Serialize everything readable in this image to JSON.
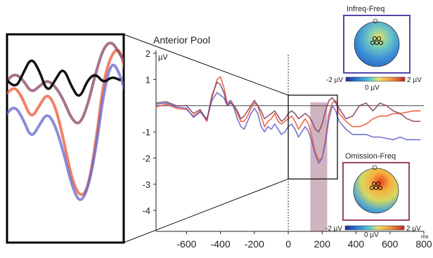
{
  "chart_data": {
    "type": "line",
    "title": "Anterior Pool",
    "ylabel": "µV",
    "xunit": "ms",
    "xlim": [
      -780,
      800
    ],
    "ylim": [
      -4.8,
      2
    ],
    "xticks": [
      -600,
      -400,
      -200,
      0,
      200,
      400,
      600,
      800
    ],
    "yticks": [
      2,
      1,
      -1,
      -2,
      -3,
      -4
    ],
    "highlight_window": [
      130,
      230
    ],
    "zoom_window": {
      "x": [
        0,
        290
      ],
      "y": [
        -2.8,
        0.4
      ]
    },
    "series": [
      {
        "color": "#ee5533",
        "x": [
          -780,
          -720,
          -660,
          -600,
          -560,
          -520,
          -480,
          -450,
          -420,
          -400,
          -380,
          -360,
          -340,
          -320,
          -300,
          -280,
          -260,
          -240,
          -220,
          -200,
          -180,
          -160,
          -140,
          -120,
          -100,
          -80,
          -60,
          -40,
          -20,
          0,
          20,
          40,
          60,
          80,
          100,
          120,
          140,
          160,
          180,
          200,
          220,
          240,
          260,
          280,
          300,
          340,
          380,
          420,
          460,
          500,
          540,
          580,
          620,
          660,
          700,
          740,
          780
        ],
        "y": [
          -0.05,
          0.05,
          -0.1,
          -0.15,
          -0.4,
          -0.2,
          -0.6,
          0.3,
          1.0,
          1.1,
          0.7,
          0.1,
          0.2,
          0.0,
          -0.3,
          -0.6,
          -0.6,
          -0.4,
          -0.1,
          0.1,
          0.0,
          -0.4,
          -0.8,
          -0.6,
          -0.5,
          -0.3,
          -0.6,
          -0.7,
          -0.6,
          -0.5,
          -0.4,
          -0.6,
          -0.9,
          -0.7,
          -0.5,
          -0.7,
          -1.2,
          -1.8,
          -2.1,
          -2.0,
          -1.3,
          -0.3,
          0.1,
          0.2,
          -0.3,
          -0.6,
          -0.8,
          -0.8,
          -0.7,
          -0.5,
          -0.4,
          -0.4,
          -0.3,
          -0.3,
          -0.25,
          -0.2,
          -0.2
        ]
      },
      {
        "color": "#6666cc",
        "x": [
          -780,
          -720,
          -660,
          -600,
          -560,
          -520,
          -480,
          -450,
          -420,
          -400,
          -380,
          -360,
          -340,
          -320,
          -300,
          -280,
          -260,
          -240,
          -220,
          -200,
          -180,
          -160,
          -140,
          -120,
          -100,
          -80,
          -60,
          -40,
          -20,
          0,
          20,
          40,
          60,
          80,
          100,
          120,
          140,
          160,
          180,
          200,
          220,
          240,
          260,
          280,
          300,
          340,
          380,
          420,
          460,
          500,
          540,
          580,
          620,
          660,
          700,
          740,
          780
        ],
        "y": [
          0.05,
          0.1,
          -0.05,
          -0.1,
          -0.45,
          -0.25,
          -0.5,
          0.2,
          0.5,
          0.4,
          0.3,
          0.0,
          0.2,
          -0.1,
          -0.5,
          -0.8,
          -0.9,
          -0.6,
          -0.3,
          -0.1,
          -0.3,
          -0.8,
          -1.0,
          -0.8,
          -0.9,
          -0.7,
          -0.9,
          -1.1,
          -1.0,
          -0.8,
          -0.7,
          -0.9,
          -1.2,
          -1.0,
          -0.8,
          -1.0,
          -1.4,
          -1.9,
          -2.2,
          -2.0,
          -1.4,
          -0.5,
          0.0,
          -0.2,
          -0.6,
          -0.9,
          -1.1,
          -1.1,
          -1.1,
          -1.2,
          -1.2,
          -1.25,
          -1.3,
          -1.2,
          -1.3,
          -1.3,
          -1.3
        ]
      },
      {
        "color": "#884466",
        "x": [
          -780,
          -720,
          -660,
          -600,
          -560,
          -520,
          -480,
          -450,
          -420,
          -400,
          -380,
          -360,
          -340,
          -320,
          -300,
          -280,
          -260,
          -240,
          -220,
          -200,
          -180,
          -160,
          -140,
          -120,
          -100,
          -80,
          -60,
          -40,
          -20,
          0,
          20,
          40,
          60,
          80,
          100,
          120,
          140,
          160,
          180,
          200,
          220,
          240,
          260,
          280,
          300,
          340,
          380,
          420,
          460,
          500,
          540,
          580,
          620,
          660,
          700,
          740,
          780
        ],
        "y": [
          0.1,
          0.15,
          0.0,
          0.0,
          -0.3,
          -0.15,
          -0.55,
          0.4,
          0.9,
          0.8,
          0.5,
          0.0,
          0.1,
          0.0,
          -0.2,
          -0.5,
          -0.4,
          -0.2,
          0.0,
          0.2,
          0.0,
          -0.2,
          -0.5,
          -0.4,
          -0.3,
          -0.2,
          -0.4,
          -0.6,
          -0.5,
          -0.3,
          -0.2,
          -0.3,
          -0.5,
          -0.4,
          -0.3,
          -0.4,
          -0.6,
          -0.9,
          -1.0,
          -0.7,
          -0.2,
          0.2,
          0.3,
          0.1,
          -0.1,
          -0.5,
          -0.4,
          0.0,
          0.1,
          -0.2,
          0.1,
          0.0,
          -0.2,
          -0.3,
          -0.5,
          -0.6,
          -0.6
        ]
      },
      {
        "color": "#111111",
        "x": [
          0,
          20,
          40,
          60,
          80,
          100,
          120,
          140,
          160,
          180,
          200,
          220,
          240,
          260,
          280
        ],
        "y": [
          -0.3,
          -0.45,
          -0.2,
          0.05,
          -0.15,
          -0.5,
          -0.3,
          -0.1,
          -0.4,
          -0.6,
          -0.3,
          -0.2,
          -0.35,
          -0.25,
          -0.3
        ]
      }
    ],
    "topomaps": [
      {
        "title": "Infreq-Freq",
        "scale_min": "-2 µV",
        "scale_mid": "0 µV",
        "scale_max": "2 µV",
        "border": "#5544aa"
      },
      {
        "title": "Omission-Freq",
        "scale_min": "-2 µV",
        "scale_mid": "0 µV",
        "scale_max": "2 µV",
        "border": "#994466"
      }
    ],
    "ms_label": "ms"
  }
}
